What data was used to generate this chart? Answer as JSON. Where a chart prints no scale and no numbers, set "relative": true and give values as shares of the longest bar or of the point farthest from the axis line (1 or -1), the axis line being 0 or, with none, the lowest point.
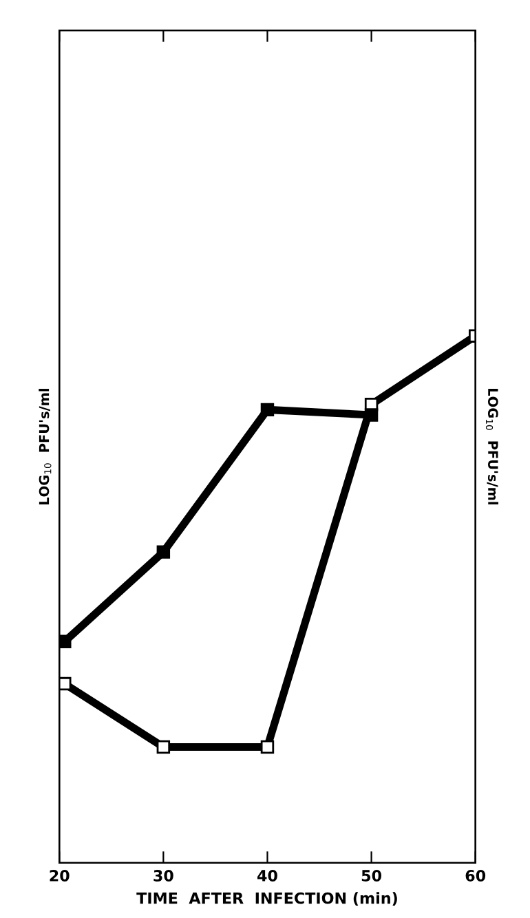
{
  "chart_data": {
    "type": "line",
    "xlabel": "TIME  AFTER  INFECTION (min)",
    "ylabel": "LOG$_{10}$  PFU's/ml",
    "y2label": "LOG$_{10}$  PFU's/ml",
    "relative": true,
    "marker": "square",
    "line_style": "solid",
    "grid": false,
    "legend": false,
    "xlim": [
      20,
      60
    ],
    "xticks": [
      20,
      30,
      40,
      50,
      60
    ],
    "series": [
      {
        "color": "#000000",
        "x": [
          20.5,
          30,
          40,
          50
        ],
        "values": [
          0.42,
          0.59,
          0.86,
          0.85
        ]
      },
      {
        "color": "#000000",
        "x": [
          20.5,
          30,
          40,
          50,
          60
        ],
        "values": [
          0.34,
          0.22,
          0.22,
          0.87,
          1
        ]
      }
    ]
  }
}
